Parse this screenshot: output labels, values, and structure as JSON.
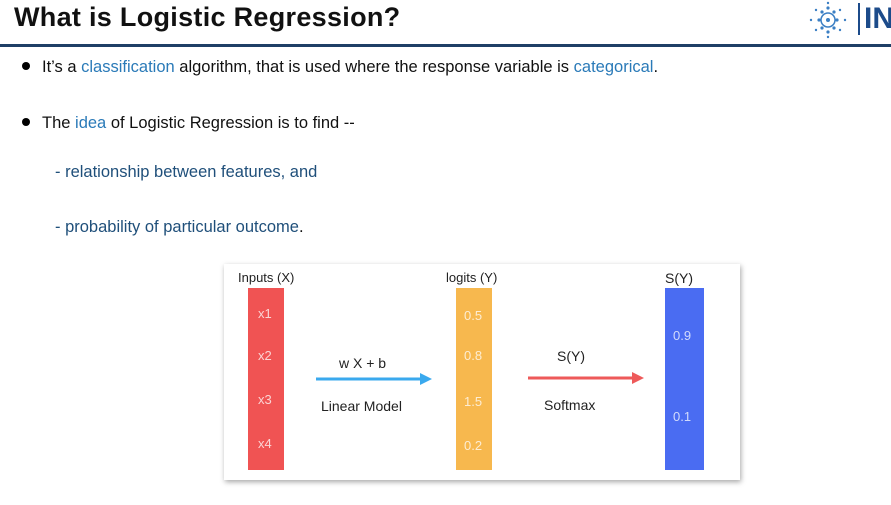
{
  "slide": {
    "title": "What is Logistic Regression?",
    "logo_text": "IN"
  },
  "bullets": [
    {
      "parts": [
        "It’s a ",
        "classification",
        " algorithm, that is used where the response variable is ",
        "categorical",
        "."
      ]
    },
    {
      "parts": [
        "The ",
        "idea",
        " of Logistic Regression is to find --"
      ]
    }
  ],
  "sub_items": [
    {
      "text": "- relationship between features, and",
      "tail": ""
    },
    {
      "text": "- probability of particular outcome",
      "tail": "."
    }
  ],
  "diagram": {
    "inputs": {
      "header": "Inputs (X)",
      "items": [
        "x1",
        "x2",
        "x3",
        "x4"
      ],
      "color": "#f05353"
    },
    "logits": {
      "header": "logits (Y)",
      "items": [
        "0.5",
        "0.8",
        "1.5",
        "0.2"
      ],
      "color": "#f7b84e"
    },
    "softmax_out": {
      "header": "S(Y)",
      "items": [
        "0.9",
        "0.1"
      ],
      "color": "#4a6cf2"
    },
    "arrow1": {
      "top_label": "w X + b",
      "bottom_label": "Linear Model",
      "color": "#3aa9ee"
    },
    "arrow2": {
      "top_label": "S(Y)",
      "bottom_label": "Softmax",
      "color": "#ee5a5a"
    }
  }
}
